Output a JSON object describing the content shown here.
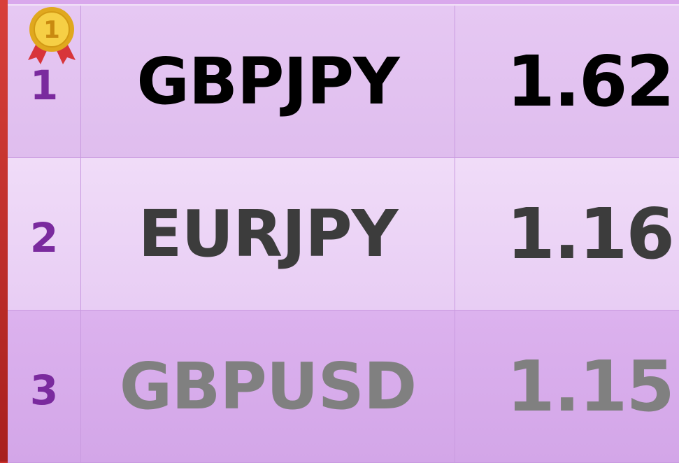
{
  "table": {
    "rows": [
      {
        "rank": 1,
        "pair": "GBPJPY",
        "value": 1.62
      },
      {
        "rank": 2,
        "pair": "EURJPY",
        "value": 1.16
      },
      {
        "rank": 3,
        "pair": "GBPUSD",
        "value": 1.15
      }
    ]
  }
}
